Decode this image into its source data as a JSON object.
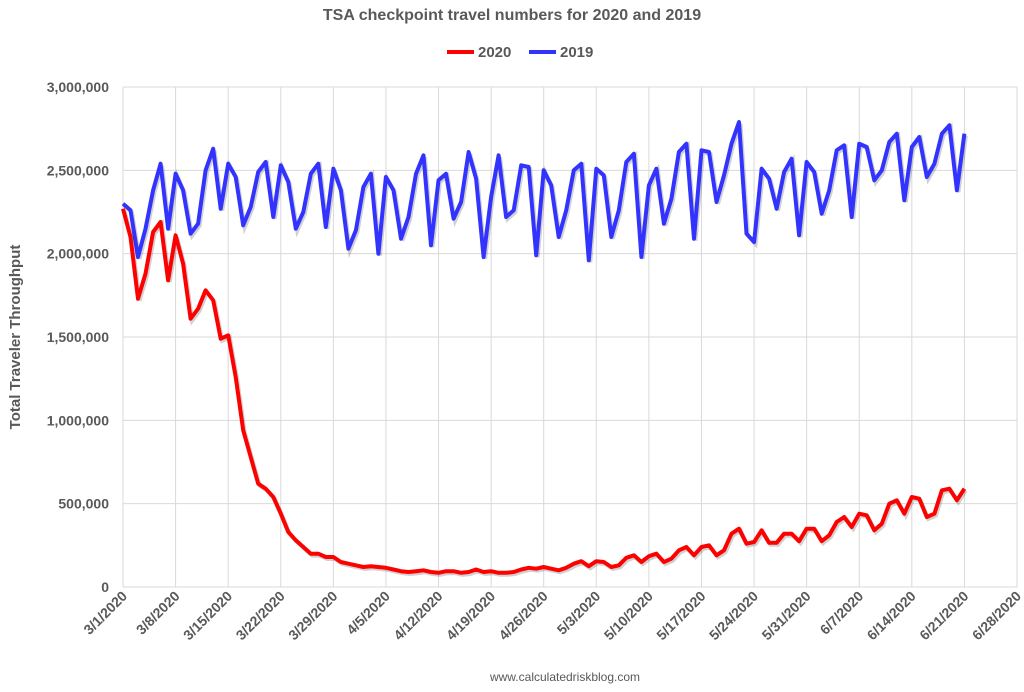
{
  "chart_data": {
    "type": "line",
    "title": "TSA checkpoint travel numbers for 2020 and 2019",
    "xlabel": "",
    "ylabel": "Total Traveler Throughput",
    "ylim": [
      0,
      3000000
    ],
    "xlim": [
      "3/1/2020",
      "6/28/2020"
    ],
    "yticks": [
      "0",
      "500,000",
      "1,000,000",
      "1,500,000",
      "2,000,000",
      "2,500,000",
      "3,000,000"
    ],
    "ytick_values": [
      0,
      500000,
      1000000,
      1500000,
      2000000,
      2500000,
      3000000
    ],
    "xticks": [
      "3/1/2020",
      "3/8/2020",
      "3/15/2020",
      "3/22/2020",
      "3/29/2020",
      "4/5/2020",
      "4/12/2020",
      "4/19/2020",
      "4/26/2020",
      "5/3/2020",
      "5/10/2020",
      "5/17/2020",
      "5/24/2020",
      "5/31/2020",
      "6/7/2020",
      "6/14/2020",
      "6/21/2020",
      "6/28/2020"
    ],
    "grid": true,
    "legend_position": "top",
    "x": [
      "3/1/2020",
      "3/2/2020",
      "3/3/2020",
      "3/4/2020",
      "3/5/2020",
      "3/6/2020",
      "3/7/2020",
      "3/8/2020",
      "3/9/2020",
      "3/10/2020",
      "3/11/2020",
      "3/12/2020",
      "3/13/2020",
      "3/14/2020",
      "3/15/2020",
      "3/16/2020",
      "3/17/2020",
      "3/18/2020",
      "3/19/2020",
      "3/20/2020",
      "3/21/2020",
      "3/22/2020",
      "3/23/2020",
      "3/24/2020",
      "3/25/2020",
      "3/26/2020",
      "3/27/2020",
      "3/28/2020",
      "3/29/2020",
      "3/30/2020",
      "3/31/2020",
      "4/1/2020",
      "4/2/2020",
      "4/3/2020",
      "4/4/2020",
      "4/5/2020",
      "4/6/2020",
      "4/7/2020",
      "4/8/2020",
      "4/9/2020",
      "4/10/2020",
      "4/11/2020",
      "4/12/2020",
      "4/13/2020",
      "4/14/2020",
      "4/15/2020",
      "4/16/2020",
      "4/17/2020",
      "4/18/2020",
      "4/19/2020",
      "4/20/2020",
      "4/21/2020",
      "4/22/2020",
      "4/23/2020",
      "4/24/2020",
      "4/25/2020",
      "4/26/2020",
      "4/27/2020",
      "4/28/2020",
      "4/29/2020",
      "4/30/2020",
      "5/1/2020",
      "5/2/2020",
      "5/3/2020",
      "5/4/2020",
      "5/5/2020",
      "5/6/2020",
      "5/7/2020",
      "5/8/2020",
      "5/9/2020",
      "5/10/2020",
      "5/11/2020",
      "5/12/2020",
      "5/13/2020",
      "5/14/2020",
      "5/15/2020",
      "5/16/2020",
      "5/17/2020",
      "5/18/2020",
      "5/19/2020",
      "5/20/2020",
      "5/21/2020",
      "5/22/2020",
      "5/23/2020",
      "5/24/2020",
      "5/25/2020",
      "5/26/2020",
      "5/27/2020",
      "5/28/2020",
      "5/29/2020",
      "5/30/2020",
      "5/31/2020",
      "6/1/2020",
      "6/2/2020",
      "6/3/2020",
      "6/4/2020",
      "6/5/2020",
      "6/6/2020",
      "6/7/2020",
      "6/8/2020",
      "6/9/2020",
      "6/10/2020",
      "6/11/2020",
      "6/12/2020",
      "6/13/2020",
      "6/14/2020",
      "6/15/2020",
      "6/16/2020",
      "6/17/2020",
      "6/18/2020",
      "6/19/2020",
      "6/20/2020",
      "6/21/2020"
    ],
    "series": [
      {
        "name": "2020",
        "color": "#ff0000",
        "values": [
          2270000,
          2100000,
          1730000,
          1880000,
          2130000,
          2190000,
          1840000,
          2110000,
          1940000,
          1610000,
          1670000,
          1780000,
          1720000,
          1490000,
          1510000,
          1260000,
          940000,
          780000,
          620000,
          590000,
          540000,
          440000,
          330000,
          280000,
          240000,
          200000,
          200000,
          180000,
          180000,
          150000,
          140000,
          130000,
          120000,
          125000,
          120000,
          115000,
          105000,
          95000,
          90000,
          95000,
          100000,
          90000,
          85000,
          95000,
          95000,
          85000,
          90000,
          105000,
          90000,
          95000,
          85000,
          85000,
          90000,
          105000,
          115000,
          110000,
          120000,
          110000,
          100000,
          115000,
          140000,
          155000,
          125000,
          155000,
          150000,
          120000,
          130000,
          175000,
          190000,
          150000,
          185000,
          200000,
          150000,
          170000,
          220000,
          240000,
          190000,
          240000,
          250000,
          190000,
          220000,
          320000,
          350000,
          260000,
          270000,
          340000,
          265000,
          265000,
          320000,
          320000,
          275000,
          350000,
          350000,
          275000,
          310000,
          390000,
          420000,
          360000,
          440000,
          430000,
          340000,
          380000,
          500000,
          520000,
          440000,
          540000,
          530000,
          420000,
          440000,
          580000,
          590000,
          520000,
          590000
        ]
      },
      {
        "name": "2019",
        "color": "#3333ff",
        "values": [
          2300000,
          2260000,
          1980000,
          2150000,
          2380000,
          2540000,
          2150000,
          2480000,
          2380000,
          2120000,
          2180000,
          2500000,
          2630000,
          2270000,
          2540000,
          2460000,
          2170000,
          2280000,
          2490000,
          2550000,
          2220000,
          2530000,
          2430000,
          2150000,
          2250000,
          2480000,
          2540000,
          2160000,
          2510000,
          2380000,
          2030000,
          2140000,
          2400000,
          2480000,
          2000000,
          2460000,
          2380000,
          2090000,
          2220000,
          2480000,
          2590000,
          2050000,
          2440000,
          2480000,
          2210000,
          2310000,
          2610000,
          2450000,
          1980000,
          2340000,
          2590000,
          2220000,
          2260000,
          2530000,
          2520000,
          1990000,
          2500000,
          2410000,
          2100000,
          2260000,
          2500000,
          2540000,
          1960000,
          2510000,
          2470000,
          2100000,
          2260000,
          2550000,
          2600000,
          1980000,
          2410000,
          2510000,
          2180000,
          2330000,
          2610000,
          2660000,
          2090000,
          2620000,
          2610000,
          2310000,
          2470000,
          2660000,
          2790000,
          2120000,
          2070000,
          2510000,
          2450000,
          2270000,
          2490000,
          2570000,
          2110000,
          2550000,
          2490000,
          2240000,
          2380000,
          2620000,
          2650000,
          2220000,
          2660000,
          2640000,
          2440000,
          2500000,
          2670000,
          2720000,
          2320000,
          2640000,
          2700000,
          2460000,
          2540000,
          2720000,
          2770000,
          2380000,
          2720000
        ]
      }
    ]
  },
  "footer": "www.calculatedriskblog.com"
}
